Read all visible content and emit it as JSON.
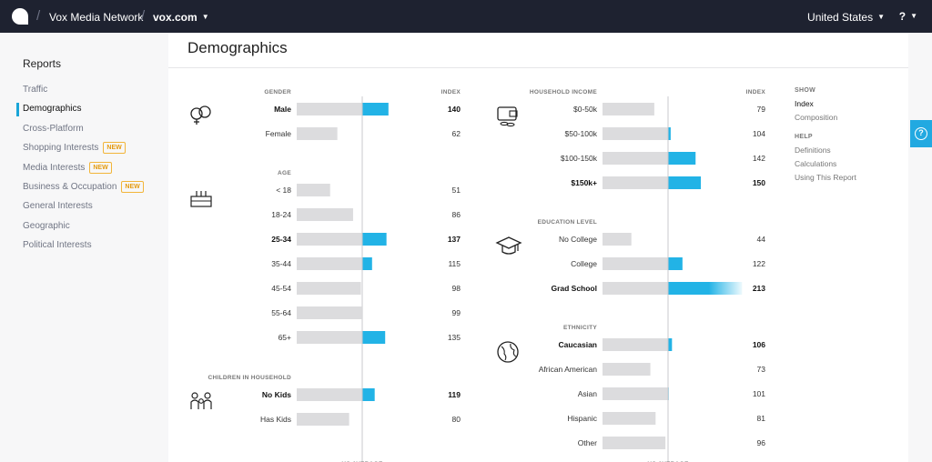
{
  "topbar": {
    "network": "Vox Media Network",
    "site": "vox.com",
    "country": "United States",
    "help": "?"
  },
  "nav": {
    "title": "Reports",
    "items": [
      {
        "label": "Traffic",
        "active": false,
        "badge": ""
      },
      {
        "label": "Demographics",
        "active": true,
        "badge": ""
      },
      {
        "label": "Cross-Platform",
        "active": false,
        "badge": ""
      },
      {
        "label": "Shopping Interests",
        "active": false,
        "badge": "NEW"
      },
      {
        "label": "Media Interests",
        "active": false,
        "badge": "NEW"
      },
      {
        "label": "Business & Occupation",
        "active": false,
        "badge": "NEW"
      },
      {
        "label": "General Interests",
        "active": false,
        "badge": ""
      },
      {
        "label": "Geographic",
        "active": false,
        "badge": ""
      },
      {
        "label": "Political Interests",
        "active": false,
        "badge": ""
      }
    ]
  },
  "page": {
    "title": "Demographics"
  },
  "colors": {
    "accent": "#22b3e6",
    "bar_gray": "#dcdcde",
    "topbar": "#1e2230"
  },
  "index_label": "INDEX",
  "us_average": "US AVERAGE",
  "chart_data": {
    "type": "bar",
    "baseline": 100,
    "left": [
      {
        "title": "GENDER",
        "icon": "gender-icon",
        "rows": [
          {
            "label": "Male",
            "value": 140,
            "bold": true
          },
          {
            "label": "Female",
            "value": 62,
            "bold": false
          }
        ]
      },
      {
        "title": "AGE",
        "icon": "birthday-cake-icon",
        "rows": [
          {
            "label": "< 18",
            "value": 51,
            "bold": false
          },
          {
            "label": "18-24",
            "value": 86,
            "bold": false
          },
          {
            "label": "25-34",
            "value": 137,
            "bold": true
          },
          {
            "label": "35-44",
            "value": 115,
            "bold": false
          },
          {
            "label": "45-54",
            "value": 98,
            "bold": false
          },
          {
            "label": "55-64",
            "value": 99,
            "bold": false
          },
          {
            "label": "65+",
            "value": 135,
            "bold": false
          }
        ]
      },
      {
        "title": "CHILDREN IN HOUSEHOLD",
        "icon": "family-icon",
        "rows": [
          {
            "label": "No Kids",
            "value": 119,
            "bold": true
          },
          {
            "label": "Has Kids",
            "value": 80,
            "bold": false
          }
        ]
      }
    ],
    "right": [
      {
        "title": "HOUSEHOLD INCOME",
        "icon": "wallet-icon",
        "rows": [
          {
            "label": "$0-50k",
            "value": 79,
            "bold": false
          },
          {
            "label": "$50-100k",
            "value": 104,
            "bold": false
          },
          {
            "label": "$100-150k",
            "value": 142,
            "bold": false
          },
          {
            "label": "$150k+",
            "value": 150,
            "bold": true
          }
        ]
      },
      {
        "title": "EDUCATION LEVEL",
        "icon": "graduation-cap-icon",
        "rows": [
          {
            "label": "No College",
            "value": 44,
            "bold": false
          },
          {
            "label": "College",
            "value": 122,
            "bold": false
          },
          {
            "label": "Grad School",
            "value": 213,
            "bold": true
          }
        ]
      },
      {
        "title": "ETHNICITY",
        "icon": "globe-icon",
        "rows": [
          {
            "label": "Caucasian",
            "value": 106,
            "bold": true
          },
          {
            "label": "African American",
            "value": 73,
            "bold": false
          },
          {
            "label": "Asian",
            "value": 101,
            "bold": false
          },
          {
            "label": "Hispanic",
            "value": 81,
            "bold": false
          },
          {
            "label": "Other",
            "value": 96,
            "bold": false
          }
        ]
      }
    ]
  },
  "side": {
    "show_title": "SHOW",
    "show_items": [
      {
        "label": "Index",
        "active": true
      },
      {
        "label": "Composition",
        "active": false
      }
    ],
    "help_title": "HELP",
    "help_items": [
      "Definitions",
      "Calculations",
      "Using This Report"
    ]
  }
}
